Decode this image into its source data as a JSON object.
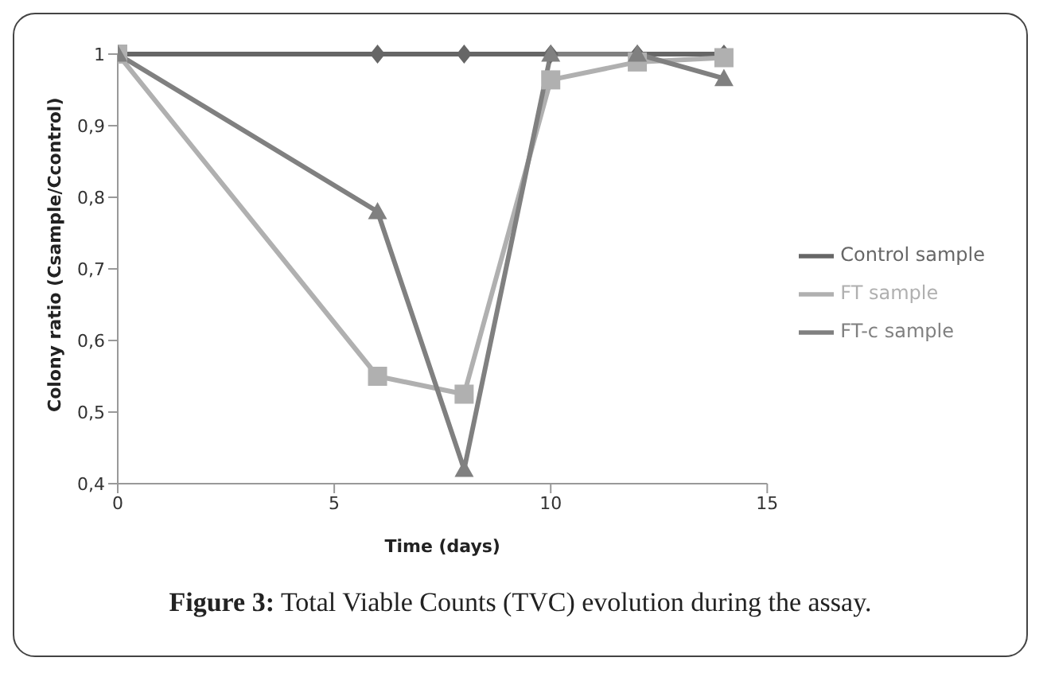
{
  "chart_data": {
    "type": "line",
    "title": "Figure 3: Total Viable Counts (TVC) evolution during the assay.",
    "xlabel": "Time (days)",
    "ylabel": "Colony ratio (Csample/Ccontrol)",
    "x": [
      0,
      6,
      8,
      10,
      12,
      14
    ],
    "series": [
      {
        "name": "Control sample",
        "color": "#666666",
        "marker": "diamond",
        "values": [
          1,
          1,
          1,
          1,
          1,
          1
        ]
      },
      {
        "name": "FT sample",
        "color": "#b0b0b0",
        "marker": "square",
        "values": [
          1,
          0.55,
          0.525,
          0.964,
          0.989,
          0.995
        ]
      },
      {
        "name": "FT-c sample",
        "color": "#808080",
        "marker": "triangle",
        "values": [
          1,
          0.78,
          0.42,
          1,
          1,
          0.966
        ]
      }
    ],
    "xlim": [
      0,
      15
    ],
    "xticks": [
      0,
      5,
      10,
      15
    ],
    "ylim": [
      0.4,
      1
    ],
    "yticks": [
      {
        "value": 0.4,
        "label": "0,4"
      },
      {
        "value": 0.5,
        "label": "0,5"
      },
      {
        "value": 0.6,
        "label": "0,6"
      },
      {
        "value": 0.7,
        "label": "0,7"
      },
      {
        "value": 0.8,
        "label": "0,8"
      },
      {
        "value": 0.9,
        "label": "0,9"
      },
      {
        "value": 1,
        "label": "1"
      }
    ],
    "grid": false,
    "legend": "right",
    "line_style": "solid"
  }
}
